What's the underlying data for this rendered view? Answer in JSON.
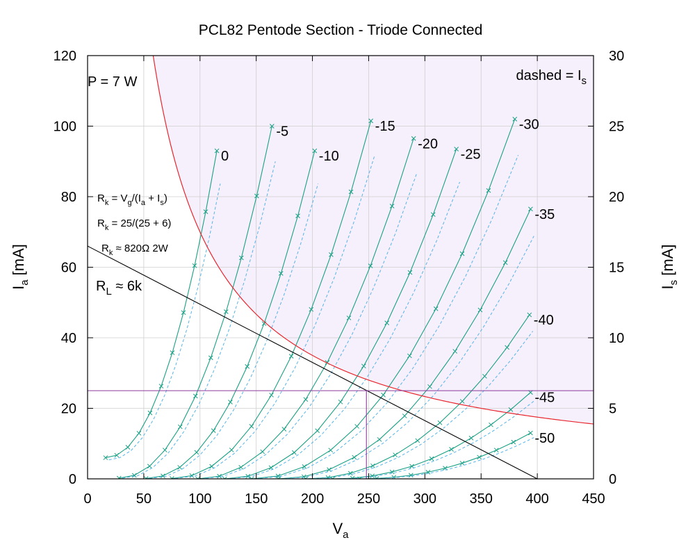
{
  "chart_data": {
    "type": "line",
    "title": "PCL82 Pentode Section - Triode Connected",
    "xlabel": {
      "main": "V",
      "sub": "a"
    },
    "ylabel": {
      "main": "I",
      "sub": "a",
      "unit": " [mA]"
    },
    "y2label": {
      "main": "I",
      "sub": "s",
      "unit": " [mA]"
    },
    "xlim": [
      0,
      450
    ],
    "ylim": [
      0,
      120
    ],
    "y2lim": [
      0,
      30
    ],
    "xticks": [
      0,
      50,
      100,
      150,
      200,
      250,
      300,
      350,
      400,
      450
    ],
    "yticks": [
      0,
      20,
      40,
      60,
      80,
      100,
      120
    ],
    "y2ticks": [
      0,
      5,
      10,
      15,
      20,
      25,
      30
    ],
    "grid": true,
    "legend_note": {
      "text": "dashed = I",
      "sub": "s",
      "placement": "top-right"
    },
    "power_label": "P = 7 W",
    "power_limit_W": 7,
    "load_line": {
      "label": "R",
      "label_sub": "L",
      "label_rest": " ≈ 6k",
      "x": [
        0,
        400
      ],
      "y": [
        66,
        0
      ]
    },
    "cathode_notes": [
      {
        "pre": "R",
        "sub1": "k",
        "mid": " = V",
        "sub2": "g",
        "post": "/(I",
        "sub3": "a",
        "post2": " + I",
        "sub4": "s",
        "post3": ")"
      },
      {
        "pre": "R",
        "sub1": "k",
        "mid": " = 25/(25 + 6)"
      },
      {
        "pre": "R",
        "sub1": "k",
        "mid": " ≈ 820Ω 2W"
      }
    ],
    "operating_point": {
      "Va": 248,
      "Ia": 25
    },
    "colors": {
      "curve": "#1aa085",
      "screen": "#56b4e9",
      "hyperbola": "#e8262e",
      "load": "#000000",
      "op": "#8b3a9a",
      "region": "#f6effc"
    },
    "series": [
      {
        "name": "0",
        "vmin": 16,
        "vmax": 115,
        "imin": 6,
        "imax": 93
      },
      {
        "name": "-5",
        "vmin": 28,
        "vmax": 164,
        "imin": 0.2,
        "imax": 100
      },
      {
        "name": "-10",
        "vmin": 52,
        "vmax": 202,
        "imin": 0.1,
        "imax": 93
      },
      {
        "name": "-15",
        "vmin": 75,
        "vmax": 252,
        "imin": 0.1,
        "imax": 101.5
      },
      {
        "name": "-20",
        "vmin": 98,
        "vmax": 290,
        "imin": 0,
        "imax": 96.5
      },
      {
        "name": "-25",
        "vmin": 122,
        "vmax": 328,
        "imin": 0,
        "imax": 93.5
      },
      {
        "name": "-30",
        "vmin": 146,
        "vmax": 380,
        "imin": 0,
        "imax": 102
      },
      {
        "name": "-35",
        "vmin": 170,
        "vmax": 394,
        "imin": 0,
        "imax": 76.5
      },
      {
        "name": "-40",
        "vmin": 194,
        "vmax": 393,
        "imin": 0,
        "imax": 46.5
      },
      {
        "name": "-45",
        "vmin": 218,
        "vmax": 394,
        "imin": 0,
        "imax": 24.5
      },
      {
        "name": "-50",
        "vmin": 242,
        "vmax": 394,
        "imin": 0,
        "imax": 13
      }
    ]
  }
}
